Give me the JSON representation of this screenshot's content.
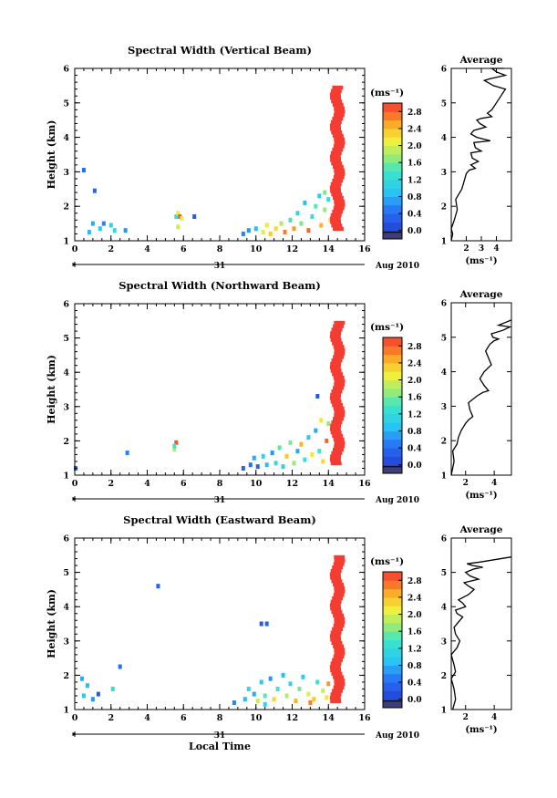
{
  "chart_data": [
    {
      "type": "heatmap",
      "title": "Spectral Width (Vertical Beam)",
      "xlabel": "",
      "ylabel": "Height (km)",
      "xlim": [
        0,
        16
      ],
      "ylim": [
        1,
        6
      ],
      "xticks": [
        "0",
        "2",
        "4",
        "6",
        "8",
        "10",
        "12",
        "14",
        "16"
      ],
      "yticks": [
        "1",
        "2",
        "3",
        "4",
        "5",
        "6"
      ],
      "date_left": "31",
      "date_right": "Aug 2010",
      "colorbar": {
        "unit": "(ms⁻¹)",
        "min": 0,
        "max": 3.0,
        "ticks": [
          "0.0",
          "0.4",
          "0.8",
          "1.2",
          "1.6",
          "2.0",
          "2.4",
          "2.8"
        ],
        "lo_color": "#3d3d7a"
      },
      "cells": [
        [
          0.5,
          3.05,
          0.6
        ],
        [
          1.1,
          2.45,
          0.5
        ],
        [
          0.8,
          1.25,
          1.0
        ],
        [
          1.0,
          1.5,
          0.9
        ],
        [
          1.4,
          1.35,
          1.1
        ],
        [
          1.6,
          1.5,
          0.7
        ],
        [
          2.0,
          1.45,
          1.2
        ],
        [
          2.2,
          1.3,
          1.3
        ],
        [
          2.8,
          1.3,
          0.8
        ],
        [
          5.6,
          1.7,
          1.4
        ],
        [
          5.7,
          1.8,
          2.2
        ],
        [
          5.8,
          1.7,
          2.9
        ],
        [
          5.9,
          1.65,
          2.1
        ],
        [
          5.7,
          1.4,
          2.0
        ],
        [
          6.6,
          1.7,
          0.4
        ],
        [
          9.3,
          1.2,
          0.7
        ],
        [
          9.6,
          1.3,
          0.8
        ],
        [
          10.0,
          1.35,
          1.0
        ],
        [
          10.4,
          1.25,
          2.1
        ],
        [
          10.6,
          1.45,
          2.2
        ],
        [
          10.8,
          1.2,
          2.4
        ],
        [
          11.1,
          1.35,
          2.3
        ],
        [
          11.4,
          1.5,
          1.9
        ],
        [
          11.6,
          1.25,
          2.7
        ],
        [
          11.9,
          1.6,
          1.5
        ],
        [
          12.1,
          1.35,
          2.6
        ],
        [
          12.3,
          1.8,
          1.2
        ],
        [
          12.5,
          1.5,
          1.7
        ],
        [
          12.7,
          2.1,
          1.0
        ],
        [
          12.9,
          1.3,
          2.8
        ],
        [
          13.1,
          1.7,
          1.4
        ],
        [
          13.3,
          2.0,
          1.6
        ],
        [
          13.5,
          2.3,
          1.1
        ],
        [
          13.6,
          1.45,
          2.5
        ],
        [
          13.8,
          1.9,
          1.8
        ],
        [
          14.0,
          2.2,
          1.3
        ],
        [
          14.1,
          1.6,
          2.2
        ],
        [
          13.8,
          2.4,
          1.7
        ]
      ],
      "column": {
        "x": 14.5,
        "x0": 14.2,
        "x1": 14.8,
        "y0": 1.3,
        "y1": 5.4,
        "v": 3.0
      }
    },
    {
      "type": "heatmap",
      "title": "Spectral Width (Northward Beam)",
      "xlabel": "",
      "ylabel": "Height (km)",
      "xlim": [
        0,
        16
      ],
      "ylim": [
        1,
        6
      ],
      "xticks": [
        "0",
        "2",
        "4",
        "6",
        "8",
        "10",
        "12",
        "14",
        "16"
      ],
      "yticks": [
        "1",
        "2",
        "3",
        "4",
        "5",
        "6"
      ],
      "date_left": "31",
      "date_right": "Aug 2010",
      "colorbar": {
        "unit": "(ms⁻¹)",
        "min": 0,
        "max": 3.0,
        "ticks": [
          "0.0",
          "0.4",
          "0.8",
          "1.2",
          "1.6",
          "2.0",
          "2.4",
          "2.8"
        ],
        "lo_color": "#3d3d7a"
      },
      "cells": [
        [
          0.05,
          1.2,
          0.5
        ],
        [
          2.9,
          1.65,
          0.7
        ],
        [
          5.5,
          1.75,
          1.9
        ],
        [
          5.6,
          1.95,
          2.9
        ],
        [
          5.5,
          1.85,
          1.5
        ],
        [
          9.3,
          1.2,
          0.5
        ],
        [
          9.7,
          1.3,
          0.6
        ],
        [
          9.9,
          1.5,
          0.9
        ],
        [
          10.1,
          1.25,
          0.5
        ],
        [
          10.4,
          1.55,
          1.2
        ],
        [
          10.6,
          1.3,
          1.0
        ],
        [
          10.9,
          1.65,
          0.8
        ],
        [
          11.1,
          1.35,
          1.3
        ],
        [
          11.3,
          1.8,
          1.6
        ],
        [
          11.5,
          1.25,
          1.2
        ],
        [
          11.7,
          1.55,
          2.4
        ],
        [
          11.9,
          1.95,
          1.7
        ],
        [
          12.1,
          1.35,
          1.8
        ],
        [
          12.3,
          1.7,
          0.9
        ],
        [
          12.5,
          1.9,
          2.5
        ],
        [
          12.7,
          1.45,
          1.4
        ],
        [
          12.9,
          2.1,
          1.1
        ],
        [
          13.1,
          1.6,
          2.2
        ],
        [
          13.3,
          2.3,
          0.9
        ],
        [
          13.5,
          1.7,
          1.5
        ],
        [
          13.4,
          3.3,
          0.4
        ],
        [
          13.7,
          1.4,
          2.3
        ],
        [
          13.9,
          2.0,
          2.8
        ],
        [
          14.0,
          2.5,
          1.8
        ],
        [
          13.6,
          2.6,
          2.2
        ]
      ],
      "column": {
        "x": 14.5,
        "x0": 14.2,
        "x1": 14.8,
        "y0": 1.3,
        "y1": 5.4,
        "v": 3.0
      }
    },
    {
      "type": "heatmap",
      "title": "Spectral Width (Eastward Beam)",
      "xlabel": "Local Time",
      "ylabel": "Height (km)",
      "xlim": [
        0,
        16
      ],
      "ylim": [
        1,
        6
      ],
      "xticks": [
        "0",
        "2",
        "4",
        "6",
        "8",
        "10",
        "12",
        "14",
        "16"
      ],
      "yticks": [
        "1",
        "2",
        "3",
        "4",
        "5",
        "6"
      ],
      "date_left": "31",
      "date_right": "Aug 2010",
      "colorbar": {
        "unit": "(ms⁻¹)",
        "min": 0,
        "max": 3.0,
        "ticks": [
          "0.0",
          "0.4",
          "0.8",
          "1.2",
          "1.6",
          "2.0",
          "2.4",
          "2.8"
        ],
        "lo_color": "#3d3d7a"
      },
      "cells": [
        [
          4.6,
          4.6,
          0.5
        ],
        [
          0.4,
          1.9,
          0.9
        ],
        [
          0.5,
          1.4,
          1.1
        ],
        [
          0.7,
          1.7,
          1.0
        ],
        [
          1.0,
          1.3,
          0.8
        ],
        [
          1.3,
          1.45,
          0.4
        ],
        [
          2.1,
          1.6,
          1.3
        ],
        [
          2.5,
          2.25,
          0.6
        ],
        [
          10.3,
          3.5,
          0.4
        ],
        [
          10.6,
          3.5,
          0.5
        ],
        [
          8.8,
          1.2,
          0.7
        ],
        [
          9.4,
          1.3,
          1.0
        ],
        [
          9.6,
          1.6,
          1.3
        ],
        [
          9.9,
          1.45,
          0.9
        ],
        [
          10.1,
          1.25,
          2.0
        ],
        [
          10.3,
          1.8,
          1.1
        ],
        [
          10.5,
          1.4,
          1.6
        ],
        [
          10.8,
          1.9,
          0.8
        ],
        [
          11.0,
          1.3,
          2.3
        ],
        [
          11.2,
          1.6,
          1.5
        ],
        [
          11.5,
          2.0,
          1.0
        ],
        [
          11.7,
          1.4,
          1.9
        ],
        [
          11.9,
          1.75,
          1.2
        ],
        [
          12.2,
          1.25,
          2.5
        ],
        [
          12.4,
          1.6,
          1.7
        ],
        [
          12.6,
          1.95,
          1.1
        ],
        [
          12.9,
          1.45,
          2.1
        ],
        [
          13.2,
          1.3,
          2.4
        ],
        [
          13.4,
          1.8,
          1.4
        ],
        [
          13.7,
          1.55,
          2.0
        ],
        [
          13.9,
          1.35,
          2.2
        ],
        [
          10.5,
          1.15,
          1.2
        ],
        [
          14.0,
          1.75,
          2.6
        ],
        [
          13.0,
          1.2,
          2.7
        ]
      ],
      "column": {
        "x": 14.5,
        "x0": 14.2,
        "x1": 14.8,
        "y0": 1.2,
        "y1": 5.4,
        "v": 3.0
      }
    },
    {
      "type": "line",
      "title": "Average",
      "xlabel": "(ms⁻¹)",
      "xlim": [
        1,
        5
      ],
      "ylim": [
        1,
        6
      ],
      "xticks": [
        "2",
        "3",
        "4"
      ],
      "yticks": [
        "1",
        "2",
        "3",
        "4",
        "5",
        "6"
      ],
      "x": [
        1.0,
        1.1,
        1.0,
        1.2,
        1.4,
        1.3,
        1.7,
        1.9,
        2.0,
        2.2,
        2.6,
        2.3,
        2.8,
        2.4,
        2.3,
        3.0,
        2.6,
        2.5,
        3.6,
        2.7,
        2.3,
        2.5,
        3.3,
        2.9,
        2.7,
        3.0,
        3.7,
        3.4,
        3.7,
        4.0,
        4.3,
        4.6,
        3.8,
        3.4,
        3.2,
        3.6,
        4.6,
        4.0,
        3.7,
        4.5
      ],
      "y": [
        1.0,
        1.2,
        1.35,
        1.6,
        1.9,
        2.2,
        2.5,
        2.8,
        2.95,
        3.05,
        3.1,
        3.2,
        3.3,
        3.4,
        3.55,
        3.6,
        3.7,
        3.85,
        3.9,
        4.0,
        4.1,
        4.2,
        4.3,
        4.4,
        4.5,
        4.55,
        4.6,
        4.7,
        4.8,
        5.0,
        5.2,
        5.4,
        5.5,
        5.6,
        5.65,
        5.7,
        5.8,
        5.9,
        6.0,
        6.0
      ]
    },
    {
      "type": "line",
      "title": "Average",
      "xlabel": "(ms⁻¹)",
      "xlim": [
        1,
        5.2
      ],
      "ylim": [
        1,
        6
      ],
      "xticks": [
        "2",
        "4"
      ],
      "yticks": [
        "1",
        "2",
        "3",
        "4",
        "5",
        "6"
      ],
      "x": [
        1.0,
        1.2,
        1.1,
        1.4,
        1.5,
        1.7,
        2.0,
        2.2,
        2.5,
        2.3,
        2.2,
        2.8,
        3.2,
        3.6,
        3.3,
        3.0,
        3.3,
        3.8,
        3.6,
        3.4,
        3.7,
        4.0,
        4.3,
        3.9,
        3.8,
        4.6,
        5.1,
        4.3,
        4.6,
        4.9,
        5.2
      ],
      "y": [
        1.0,
        1.4,
        1.7,
        1.9,
        2.1,
        2.3,
        2.5,
        2.6,
        2.7,
        2.9,
        3.1,
        3.3,
        3.4,
        3.45,
        3.6,
        3.8,
        4.0,
        4.2,
        4.4,
        4.6,
        4.8,
        4.9,
        4.95,
        5.0,
        5.1,
        5.2,
        5.3,
        5.35,
        5.4,
        5.45,
        5.5
      ]
    },
    {
      "type": "line",
      "title": "Average",
      "xlabel": "(ms⁻¹)",
      "xlim": [
        1,
        5.2
      ],
      "ylim": [
        1,
        6
      ],
      "xticks": [
        "2",
        "4"
      ],
      "yticks": [
        "1",
        "2",
        "3",
        "4",
        "5",
        "6"
      ],
      "x": [
        1.1,
        1.3,
        1.2,
        1.0,
        1.3,
        1.2,
        1.0,
        1.4,
        1.6,
        1.3,
        1.2,
        1.5,
        1.8,
        1.4,
        1.3,
        2.0,
        1.8,
        1.5,
        2.2,
        2.6,
        2.2,
        1.9,
        2.4,
        2.9,
        2.3,
        2.0,
        2.6,
        3.2,
        2.5,
        2.1,
        3.0,
        5.6
      ],
      "y": [
        1.0,
        1.3,
        1.6,
        1.9,
        2.1,
        2.3,
        2.6,
        2.8,
        3.0,
        3.2,
        3.4,
        3.55,
        3.7,
        3.8,
        3.9,
        4.0,
        4.1,
        4.2,
        4.35,
        4.5,
        4.6,
        4.7,
        4.75,
        4.8,
        4.9,
        5.0,
        5.1,
        5.15,
        5.2,
        5.25,
        5.3,
        5.45
      ]
    }
  ]
}
